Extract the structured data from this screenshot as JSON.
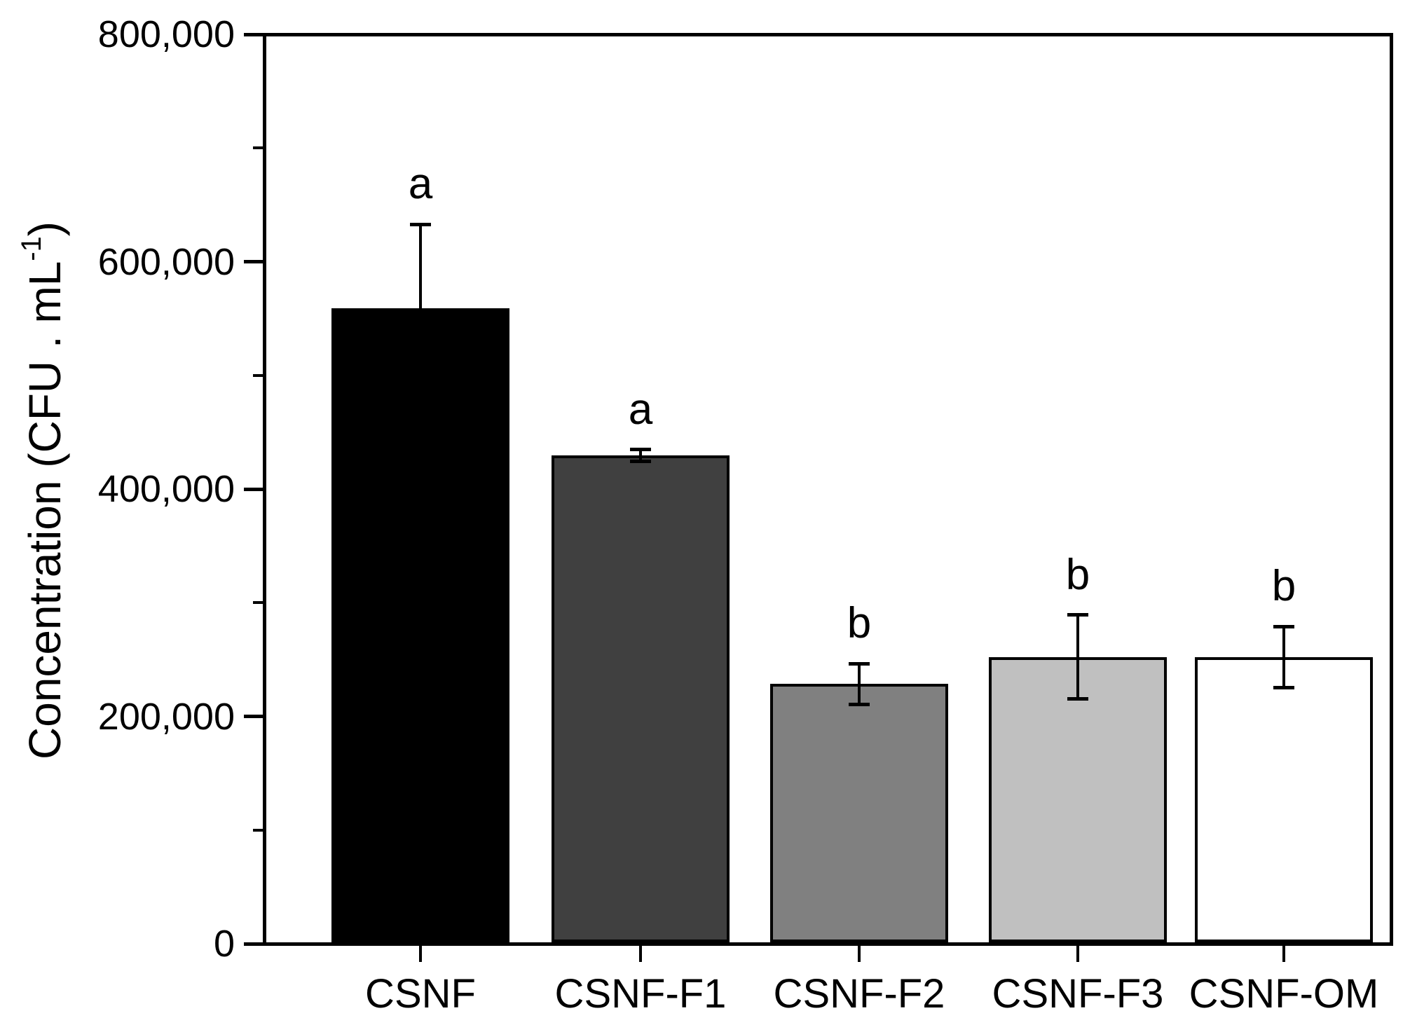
{
  "chart_data": {
    "type": "bar",
    "title": "",
    "xlabel": "",
    "ylabel": "Concentration (CFU . mL⁻¹)",
    "ylabel_parts": {
      "prefix": "Concentration (CFU . mL",
      "superscript": "-1",
      "suffix": ")"
    },
    "categories": [
      "CSNF",
      "CSNF-F1",
      "CSNF-F2",
      "CSNF-F3",
      "CSNF-OM"
    ],
    "values": [
      560000,
      430000,
      228000,
      252000,
      252000
    ],
    "errors": [
      74000,
      5000,
      18000,
      37000,
      27000
    ],
    "sig_letters": [
      "a",
      "a",
      "b",
      "b",
      "b"
    ],
    "bar_colors": [
      "#000000",
      "#404040",
      "#808080",
      "#c0c0c0",
      "#ffffff"
    ],
    "bar_edge_color": "#000000",
    "ylim": [
      0,
      800000
    ],
    "ytick_values": [
      0,
      200000,
      400000,
      600000,
      800000
    ],
    "ytick_labels": [
      "0",
      "200,000",
      "400,000",
      "600,000",
      "800,000"
    ],
    "yminor_tick_values": [
      100000,
      300000,
      500000,
      700000
    ],
    "grid": false,
    "legend": false,
    "background": "#ffffff",
    "axis_color": "#000000"
  }
}
